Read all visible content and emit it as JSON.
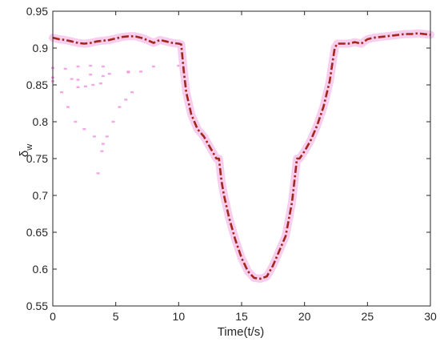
{
  "chart_data": {
    "type": "line",
    "title": "",
    "xlabel": "Time(t/s)",
    "ylabel": {
      "base": "δ",
      "sub": "w"
    },
    "xlim": [
      0,
      30
    ],
    "ylim": [
      0.55,
      0.95
    ],
    "xticks": [
      0,
      5,
      10,
      15,
      20,
      25,
      30
    ],
    "yticks": [
      0.55,
      0.6,
      0.65,
      0.7,
      0.75,
      0.8,
      0.85,
      0.9,
      0.95
    ],
    "xtick_labels": [
      "0",
      "5",
      "10",
      "15",
      "20",
      "25",
      "30"
    ],
    "ytick_labels": [
      "0.55",
      "0.6",
      "0.65",
      "0.7",
      "0.75",
      "0.8",
      "0.85",
      "0.9",
      "0.95"
    ],
    "grid": false,
    "legend": "none",
    "colors": {
      "axis": "#262626",
      "line": "#a0281c",
      "band": "#f7c8ec",
      "scatter": "#ee9ade"
    },
    "series": [
      {
        "style": "dash-dot",
        "x": [
          0,
          0.5,
          1,
          1.5,
          2,
          2.5,
          3,
          3.5,
          4,
          4.5,
          5,
          5.5,
          6,
          6.5,
          7,
          7.5,
          8,
          8.5,
          9,
          9.5,
          10,
          10.2,
          10.4,
          10.6,
          11,
          11.5,
          12,
          12.5,
          13,
          13.2,
          13.4,
          13.6,
          14,
          14.5,
          15,
          15.5,
          16,
          16.5,
          17,
          17.5,
          18,
          18.5,
          19,
          19.2,
          19.4,
          19.6,
          20,
          20.5,
          21,
          21.5,
          22,
          22.2,
          22.4,
          22.6,
          23,
          23.5,
          24,
          24.5,
          25,
          25.5,
          26,
          26.5,
          27,
          27.5,
          28,
          28.5,
          29,
          29.5,
          30
        ],
        "y": [
          0.914,
          0.912,
          0.911,
          0.909,
          0.907,
          0.906,
          0.907,
          0.909,
          0.91,
          0.911,
          0.913,
          0.915,
          0.916,
          0.916,
          0.914,
          0.911,
          0.907,
          0.911,
          0.909,
          0.907,
          0.906,
          0.905,
          0.87,
          0.84,
          0.81,
          0.79,
          0.78,
          0.765,
          0.75,
          0.75,
          0.72,
          0.7,
          0.67,
          0.64,
          0.615,
          0.597,
          0.588,
          0.587,
          0.59,
          0.605,
          0.625,
          0.645,
          0.69,
          0.72,
          0.75,
          0.75,
          0.76,
          0.775,
          0.795,
          0.82,
          0.855,
          0.878,
          0.9,
          0.906,
          0.906,
          0.906,
          0.908,
          0.906,
          0.912,
          0.914,
          0.915,
          0.916,
          0.917,
          0.918,
          0.919,
          0.919,
          0.92,
          0.919,
          0.918
        ]
      }
    ],
    "scatter_artifacts": [
      {
        "x": [
          0,
          1,
          2,
          3,
          4
        ],
        "y": [
          0.873,
          0.872,
          0.875,
          0.876,
          0.875
        ]
      },
      {
        "x": [
          0,
          1.5,
          3,
          4.5,
          6,
          7
        ],
        "y": [
          0.86,
          0.858,
          0.864,
          0.865,
          0.867,
          0.868
        ]
      },
      {
        "x": [
          0,
          2,
          4,
          6,
          8,
          10
        ],
        "y": [
          0.855,
          0.857,
          0.862,
          0.868,
          0.875,
          0.876
        ]
      },
      {
        "x": [
          0.7,
          1.2,
          1.8,
          2.5,
          3.3,
          4
        ],
        "y": [
          0.84,
          0.82,
          0.8,
          0.79,
          0.78,
          0.77
        ]
      },
      {
        "x": [
          3.6,
          3.9,
          4.3,
          4.8,
          5.3,
          5.8,
          6.3
        ],
        "y": [
          0.73,
          0.76,
          0.78,
          0.8,
          0.82,
          0.83,
          0.84
        ]
      },
      {
        "x": [
          2,
          2.6,
          3.2,
          3.8
        ],
        "y": [
          0.847,
          0.848,
          0.85,
          0.852
        ]
      }
    ]
  }
}
